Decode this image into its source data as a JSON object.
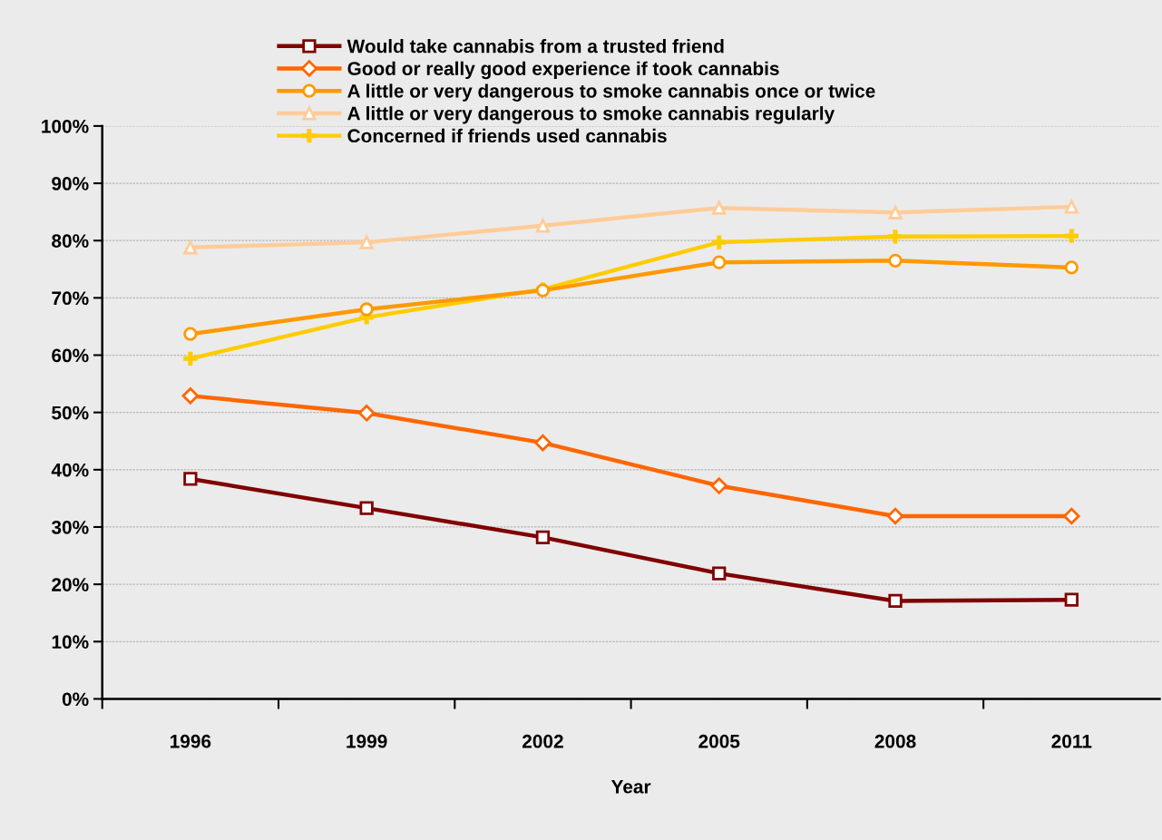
{
  "chart_data": {
    "type": "line",
    "xlabel": "Year",
    "categories": [
      "1996",
      "1999",
      "2002",
      "2005",
      "2008",
      "2011"
    ],
    "ylim": [
      0,
      1
    ],
    "yticks": [
      {
        "value": 0,
        "label": "0%"
      },
      {
        "value": 0.1,
        "label": "10%"
      },
      {
        "value": 0.2,
        "label": "20%"
      },
      {
        "value": 0.3,
        "label": "30%"
      },
      {
        "value": 0.4,
        "label": "40%"
      },
      {
        "value": 0.5,
        "label": "50%"
      },
      {
        "value": 0.6,
        "label": "60%"
      },
      {
        "value": 0.7,
        "label": "70%"
      },
      {
        "value": 0.8,
        "label": "80%"
      },
      {
        "value": 0.9,
        "label": "90%"
      },
      {
        "value": 1,
        "label": "100%"
      }
    ],
    "grid": "y",
    "legend": "top",
    "series": [
      {
        "name": "Would take cannabis from a trusted friend",
        "color": "#800000",
        "marker": "square",
        "values": [
          0.384,
          0.333,
          0.282,
          0.219,
          0.171,
          0.173
        ]
      },
      {
        "name": "Good or really good experience if took cannabis",
        "color": "#ff6600",
        "marker": "diamond",
        "values": [
          0.529,
          0.499,
          0.447,
          0.372,
          0.319,
          0.319
        ]
      },
      {
        "name": "A little or very dangerous to smoke cannabis once or twice",
        "color": "#ff9900",
        "marker": "circle",
        "values": [
          0.637,
          0.68,
          0.713,
          0.762,
          0.765,
          0.753
        ]
      },
      {
        "name": "A little or very dangerous to smoke cannabis regularly",
        "color": "#ffcc99",
        "marker": "triangle",
        "values": [
          0.788,
          0.797,
          0.826,
          0.857,
          0.849,
          0.859
        ]
      },
      {
        "name": "Concerned if friends used cannabis",
        "color": "#ffcc00",
        "marker": "cross",
        "values": [
          0.594,
          0.666,
          0.715,
          0.797,
          0.807,
          0.808
        ]
      }
    ]
  }
}
